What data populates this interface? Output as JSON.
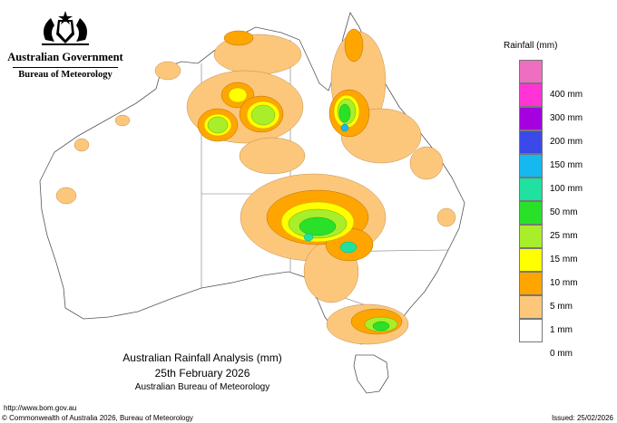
{
  "logo": {
    "government": "Australian Government",
    "agency": "Bureau of Meteorology",
    "icon": "coat-of-arms"
  },
  "legend": {
    "title": "Rainfall (mm)",
    "items": [
      {
        "label": "",
        "color": "#ee6fbf"
      },
      {
        "label": "400 mm",
        "color": "#ff33d6"
      },
      {
        "label": "300 mm",
        "color": "#a500e0"
      },
      {
        "label": "200 mm",
        "color": "#3b49e8"
      },
      {
        "label": "150 mm",
        "color": "#15b9ef"
      },
      {
        "label": "100 mm",
        "color": "#1fe2a0"
      },
      {
        "label": "50 mm",
        "color": "#2ae12a"
      },
      {
        "label": "25 mm",
        "color": "#a8ee2b"
      },
      {
        "label": "15 mm",
        "color": "#ffff00"
      },
      {
        "label": "10 mm",
        "color": "#ffa500"
      },
      {
        "label": "5 mm",
        "color": "#fcc77a"
      },
      {
        "label": "1 mm",
        "color": "#ffffff"
      },
      {
        "label": "0 mm",
        "color": ""
      }
    ]
  },
  "map": {
    "title": "Australian Rainfall Analysis (mm)",
    "date": "25th February 2026",
    "agency": "Australian Bureau of Meteorology"
  },
  "footer": {
    "url": "http://www.bom.gov.au",
    "copyright": "© Commonwealth of Australia 2026, Bureau of Meteorology",
    "issued": "Issued: 25/02/2026"
  }
}
